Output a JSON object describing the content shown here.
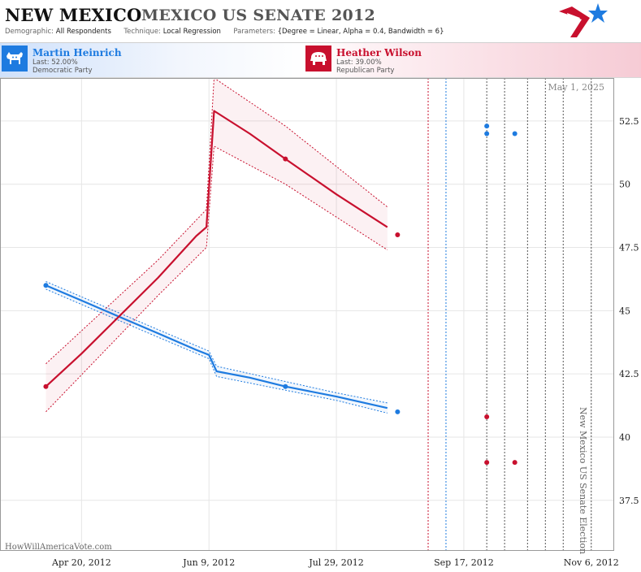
{
  "header": {
    "state": "NEW MEXICO",
    "race": "MEXICO US SENATE 2012",
    "demographic_label": "Demographic:",
    "demographic": "All Respondents",
    "technique_label": "Technique:",
    "technique": "Local Regression",
    "parameters_label": "Parameters:",
    "parameters": "{Degree = Linear, Alpha = 0.4, Bandwidth = 6}"
  },
  "candidates": [
    {
      "name": "Martin Heinrich",
      "last": "Last: 52.00%",
      "party": "Democratic Party",
      "color": "#1e7be0",
      "icon": "donkey-icon"
    },
    {
      "name": "Heather Wilson",
      "last": "Last: 39.00%",
      "party": "Republican Party",
      "color": "#c8102e",
      "icon": "elephant-icon"
    }
  ],
  "chart_data": {
    "type": "line",
    "date_annotation": "May 1, 2025",
    "watermark": "HowWillAmericaVote.com",
    "election_label": "New Mexico US Senate Election",
    "x_ticks": [
      {
        "date": "2012-04-20",
        "label": "Apr 20, 2012"
      },
      {
        "date": "2012-06-09",
        "label": "Jun 9, 2012"
      },
      {
        "date": "2012-07-29",
        "label": "Jul 29, 2012"
      },
      {
        "date": "2012-09-17",
        "label": "Sep 17, 2012"
      },
      {
        "date": "2012-11-06",
        "label": "Nov 6, 2012"
      }
    ],
    "y_ticks": [
      37.5,
      40,
      42.5,
      45,
      47.5,
      50,
      52.5
    ],
    "ylim": [
      35.5,
      54.2
    ],
    "xlim": [
      "2012-03-19",
      "2012-11-15"
    ],
    "grid": true,
    "series": [
      {
        "name": "Martin Heinrich",
        "color": "#1e7be0",
        "trend": [
          {
            "x": "2012-04-06",
            "y": 46.0
          },
          {
            "x": "2012-04-20",
            "y": 45.4
          },
          {
            "x": "2012-05-05",
            "y": 44.75
          },
          {
            "x": "2012-05-20",
            "y": 44.1
          },
          {
            "x": "2012-06-04",
            "y": 43.45
          },
          {
            "x": "2012-06-09",
            "y": 43.25
          },
          {
            "x": "2012-06-12",
            "y": 42.6
          },
          {
            "x": "2012-06-25",
            "y": 42.35
          },
          {
            "x": "2012-07-09",
            "y": 42.0
          },
          {
            "x": "2012-07-29",
            "y": 41.6
          },
          {
            "x": "2012-08-18",
            "y": 41.15
          }
        ],
        "band_upper": [
          {
            "x": "2012-04-06",
            "y": 46.15
          },
          {
            "x": "2012-05-20",
            "y": 44.25
          },
          {
            "x": "2012-06-09",
            "y": 43.4
          },
          {
            "x": "2012-06-12",
            "y": 42.8
          },
          {
            "x": "2012-07-29",
            "y": 41.75
          },
          {
            "x": "2012-08-18",
            "y": 41.35
          }
        ],
        "band_lower": [
          {
            "x": "2012-04-06",
            "y": 45.85
          },
          {
            "x": "2012-05-20",
            "y": 43.95
          },
          {
            "x": "2012-06-09",
            "y": 43.1
          },
          {
            "x": "2012-06-12",
            "y": 42.4
          },
          {
            "x": "2012-07-29",
            "y": 41.45
          },
          {
            "x": "2012-08-18",
            "y": 40.95
          }
        ],
        "points": [
          {
            "x": "2012-04-06",
            "y": 46.0
          },
          {
            "x": "2012-07-09",
            "y": 42.0
          },
          {
            "x": "2012-08-22",
            "y": 41.0
          },
          {
            "x": "2012-09-26",
            "y": 52.3
          },
          {
            "x": "2012-09-26",
            "y": 52.0
          },
          {
            "x": "2012-10-07",
            "y": 52.0
          }
        ]
      },
      {
        "name": "Heather Wilson",
        "color": "#c8102e",
        "trend": [
          {
            "x": "2012-04-06",
            "y": 42.0
          },
          {
            "x": "2012-04-20",
            "y": 43.3
          },
          {
            "x": "2012-05-05",
            "y": 44.8
          },
          {
            "x": "2012-05-20",
            "y": 46.3
          },
          {
            "x": "2012-06-04",
            "y": 47.95
          },
          {
            "x": "2012-06-08",
            "y": 48.3
          },
          {
            "x": "2012-06-11",
            "y": 52.9
          },
          {
            "x": "2012-06-25",
            "y": 52.0
          },
          {
            "x": "2012-07-09",
            "y": 51.0
          },
          {
            "x": "2012-07-29",
            "y": 49.6
          },
          {
            "x": "2012-08-18",
            "y": 48.3
          }
        ],
        "band_upper": [
          {
            "x": "2012-04-06",
            "y": 42.9
          },
          {
            "x": "2012-05-20",
            "y": 47.0
          },
          {
            "x": "2012-06-08",
            "y": 49.0
          },
          {
            "x": "2012-06-11",
            "y": 54.2
          },
          {
            "x": "2012-07-09",
            "y": 52.3
          },
          {
            "x": "2012-08-18",
            "y": 49.1
          }
        ],
        "band_lower": [
          {
            "x": "2012-04-06",
            "y": 41.0
          },
          {
            "x": "2012-05-20",
            "y": 45.6
          },
          {
            "x": "2012-06-08",
            "y": 47.5
          },
          {
            "x": "2012-06-11",
            "y": 51.5
          },
          {
            "x": "2012-07-09",
            "y": 50.0
          },
          {
            "x": "2012-08-18",
            "y": 47.4
          }
        ],
        "points": [
          {
            "x": "2012-04-06",
            "y": 42.0
          },
          {
            "x": "2012-07-09",
            "y": 51.0
          },
          {
            "x": "2012-08-22",
            "y": 48.0
          },
          {
            "x": "2012-09-26",
            "y": 40.8
          },
          {
            "x": "2012-09-26",
            "y": 39.0
          },
          {
            "x": "2012-10-07",
            "y": 39.0
          }
        ]
      }
    ],
    "vertical_lines": [
      {
        "x": "2012-09-03",
        "color": "#c8102e"
      },
      {
        "x": "2012-09-10",
        "color": "#1e7be0"
      },
      {
        "x": "2012-09-26",
        "color": "#555555"
      },
      {
        "x": "2012-10-03",
        "color": "#555555"
      },
      {
        "x": "2012-10-12",
        "color": "#555555"
      },
      {
        "x": "2012-10-19",
        "color": "#555555"
      },
      {
        "x": "2012-10-26",
        "color": "#555555"
      },
      {
        "x": "2012-11-06",
        "color": "#555555"
      }
    ]
  }
}
